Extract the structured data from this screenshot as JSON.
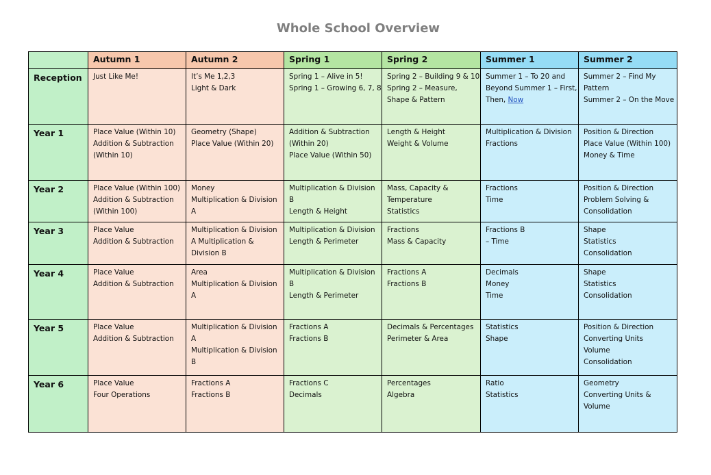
{
  "title": "Whole School Overview",
  "colors": {
    "label_col": "#c1f0c8",
    "autumn_header": "#f7c7ac",
    "autumn_body": "#fbe2d5",
    "spring_header": "#b4e5a2",
    "spring_body": "#daf2d0",
    "summer_header": "#95dcf5",
    "summer_body": "#caeefb"
  },
  "headers": [
    "",
    "Autumn 1",
    "Autumn 2",
    "Spring 1",
    "Spring 2",
    "Summer 1",
    "Summer 2"
  ],
  "rows": [
    {
      "label": "Reception",
      "cells": [
        {
          "lines": [
            "Just Like Me!"
          ]
        },
        {
          "lines": [
            "It’s Me 1,2,3",
            "Light & Dark"
          ]
        },
        {
          "lines": [
            "Spring 1 – Alive in 5!",
            "Spring 1 – Growing 6, 7, 8"
          ]
        },
        {
          "lines": [
            "Spring 2 – Building 9 & 10",
            "Spring 2 – Measure,",
            "Shape & Pattern"
          ]
        },
        {
          "lines": [
            "Summer 1 – To 20 and",
            "Beyond Summer 1 – First,",
            "Then, "
          ],
          "link": "Now"
        },
        {
          "lines": [
            "Summer 2 – Find My",
            "Pattern",
            "Summer 2 – On the Move"
          ]
        }
      ]
    },
    {
      "label": "Year 1",
      "cells": [
        {
          "lines": [
            "Place Value (Within 10)",
            "Addition & Subtraction",
            "(Within 10)"
          ]
        },
        {
          "lines": [
            "Geometry (Shape)",
            "Place Value (Within 20)"
          ]
        },
        {
          "lines": [
            "Addition & Subtraction",
            "(Within 20)",
            "Place Value (Within 50)"
          ]
        },
        {
          "lines": [
            "Length & Height",
            "Weight & Volume"
          ]
        },
        {
          "lines": [
            "Multiplication & Division",
            "Fractions"
          ]
        },
        {
          "lines": [
            "Position & Direction",
            "Place Value (Within 100)",
            "Money & Time"
          ]
        }
      ]
    },
    {
      "label": "Year 2",
      "cells": [
        {
          "lines": [
            "Place Value (Within 100)",
            "Addition & Subtraction",
            "(Within 100)"
          ]
        },
        {
          "lines": [
            "Money",
            "Multiplication & Division",
            "A"
          ]
        },
        {
          "lines": [
            "Multiplication & Division",
            "B",
            "Length & Height"
          ]
        },
        {
          "lines": [
            "Mass, Capacity &",
            "Temperature",
            "Statistics"
          ]
        },
        {
          "lines": [
            "Fractions",
            "Time"
          ]
        },
        {
          "lines": [
            "Position & Direction",
            "Problem Solving &",
            "Consolidation"
          ]
        }
      ]
    },
    {
      "label": "Year 3",
      "cells": [
        {
          "lines": [
            "Place Value",
            "Addition & Subtraction"
          ]
        },
        {
          "lines": [
            "Multiplication & Division",
            "A Multiplication &",
            "Division B"
          ]
        },
        {
          "lines": [
            "Multiplication & Division",
            "Length & Perimeter"
          ]
        },
        {
          "lines": [
            "Fractions",
            "Mass & Capacity"
          ]
        },
        {
          "lines": [
            "Fractions B",
            "– Time"
          ]
        },
        {
          "lines": [
            "Shape",
            "Statistics",
            "Consolidation"
          ]
        }
      ]
    },
    {
      "label": "Year 4",
      "cells": [
        {
          "lines": [
            "Place Value",
            "Addition & Subtraction"
          ]
        },
        {
          "lines": [
            "Area",
            "Multiplication & Division",
            "A"
          ]
        },
        {
          "lines": [
            "Multiplication & Division",
            "B",
            "Length & Perimeter"
          ]
        },
        {
          "lines": [
            "Fractions A",
            "Fractions B"
          ]
        },
        {
          "lines": [
            "Decimals",
            "Money",
            "Time"
          ]
        },
        {
          "lines": [
            "Shape",
            "Statistics",
            "Consolidation"
          ]
        }
      ]
    },
    {
      "label": "Year 5",
      "cells": [
        {
          "lines": [
            "Place Value",
            "Addition & Subtraction"
          ]
        },
        {
          "lines": [
            "Multiplication & Division",
            "A",
            "Multiplication & Division",
            "B"
          ]
        },
        {
          "lines": [
            "Fractions A",
            "Fractions B"
          ]
        },
        {
          "lines": [
            "Decimals & Percentages",
            "Perimeter & Area"
          ]
        },
        {
          "lines": [
            "Statistics",
            "Shape"
          ]
        },
        {
          "lines": [
            "Position & Direction",
            "Converting Units",
            "Volume",
            "Consolidation"
          ]
        }
      ]
    },
    {
      "label": "Year 6",
      "cells": [
        {
          "lines": [
            "Place Value",
            "Four Operations"
          ]
        },
        {
          "lines": [
            "Fractions A",
            "Fractions B"
          ]
        },
        {
          "lines": [
            "Fractions C",
            "Decimals"
          ]
        },
        {
          "lines": [
            "Percentages",
            "Algebra"
          ]
        },
        {
          "lines": [
            "Ratio",
            "Statistics"
          ]
        },
        {
          "lines": [
            "Geometry",
            "Converting Units &",
            "Volume"
          ]
        }
      ]
    }
  ]
}
